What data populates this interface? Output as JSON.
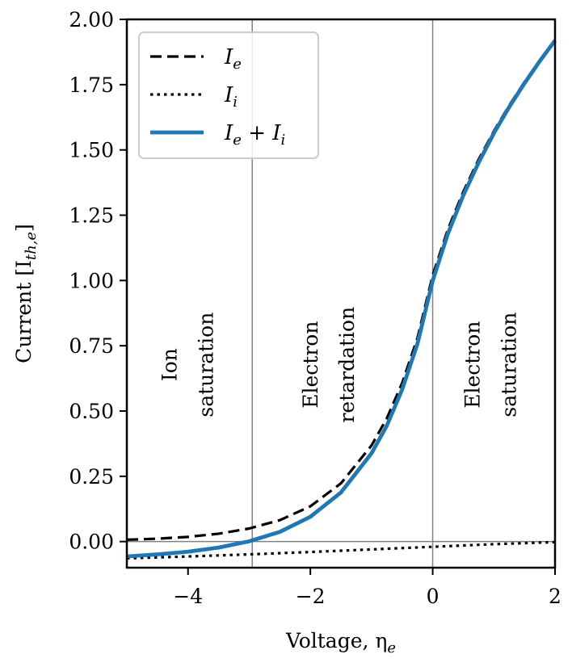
{
  "chart_data": {
    "type": "line",
    "title": "",
    "xlabel": "Voltage, η",
    "xlabel_sub": "e",
    "ylabel": "Current [I",
    "ylabel_sub": "th,e",
    "ylabel_close": "]",
    "xlim": [
      -5,
      2
    ],
    "ylim": [
      -0.1,
      2.0
    ],
    "xticks": [
      -4,
      -2,
      0,
      2
    ],
    "xtick_labels": [
      "−4",
      "−2",
      "0",
      "2"
    ],
    "yticks": [
      0.0,
      0.25,
      0.5,
      0.75,
      1.0,
      1.25,
      1.5,
      1.75,
      2.0
    ],
    "ytick_labels": [
      "0.00",
      "0.25",
      "0.50",
      "0.75",
      "1.00",
      "1.25",
      "1.50",
      "1.75",
      "2.00"
    ],
    "grid": false,
    "legend_position": "top-left",
    "vertical_lines": [
      -2.95,
      0
    ],
    "horizontal_lines": [
      0
    ],
    "series": [
      {
        "name": "I_e",
        "legend_main": "I",
        "legend_sub": "e",
        "style": "dashed",
        "color": "#000000",
        "x": [
          -5.0,
          -4.5,
          -4.0,
          -3.5,
          -3.0,
          -2.5,
          -2.0,
          -1.5,
          -1.0,
          -0.75,
          -0.5,
          -0.25,
          0.0,
          0.25,
          0.5,
          0.75,
          1.0,
          1.25,
          1.5,
          1.75,
          2.0
        ],
        "y": [
          0.007,
          0.011,
          0.018,
          0.03,
          0.05,
          0.082,
          0.135,
          0.223,
          0.368,
          0.472,
          0.607,
          0.779,
          1.02,
          1.197,
          1.34,
          1.463,
          1.572,
          1.67,
          1.76,
          1.843,
          1.921
        ]
      },
      {
        "name": "I_i",
        "legend_main": "I",
        "legend_sub": "i",
        "style": "dotted",
        "color": "#000000",
        "x": [
          -5.0,
          -4.0,
          -3.0,
          -2.0,
          -1.0,
          0.0,
          1.0,
          2.0
        ],
        "y": [
          -0.064,
          -0.057,
          -0.049,
          -0.04,
          -0.03,
          -0.02,
          -0.01,
          -0.002
        ]
      },
      {
        "name": "I_e + I_i",
        "legend_main": "I",
        "legend_sub": "e",
        "legend_plus": " + I",
        "legend_sub2": "i",
        "style": "solid",
        "color": "#1f77b4",
        "x": [
          -5.0,
          -4.5,
          -4.0,
          -3.5,
          -3.0,
          -2.5,
          -2.0,
          -1.5,
          -1.0,
          -0.75,
          -0.5,
          -0.25,
          0.0,
          0.25,
          0.5,
          0.75,
          1.0,
          1.25,
          1.5,
          1.75,
          2.0
        ],
        "y": [
          -0.057,
          -0.049,
          -0.039,
          -0.023,
          0.001,
          0.037,
          0.095,
          0.188,
          0.338,
          0.444,
          0.582,
          0.757,
          0.999,
          1.18,
          1.326,
          1.451,
          1.564,
          1.664,
          1.755,
          1.84,
          1.919
        ]
      }
    ],
    "annotations": [
      {
        "lines": [
          "Ion",
          "saturation"
        ],
        "x": -4.0
      },
      {
        "lines": [
          "Electron",
          "retardation"
        ],
        "x": -1.7
      },
      {
        "lines": [
          "Electron",
          "saturation"
        ],
        "x": 0.95
      }
    ],
    "annotation_y": 0.9
  }
}
